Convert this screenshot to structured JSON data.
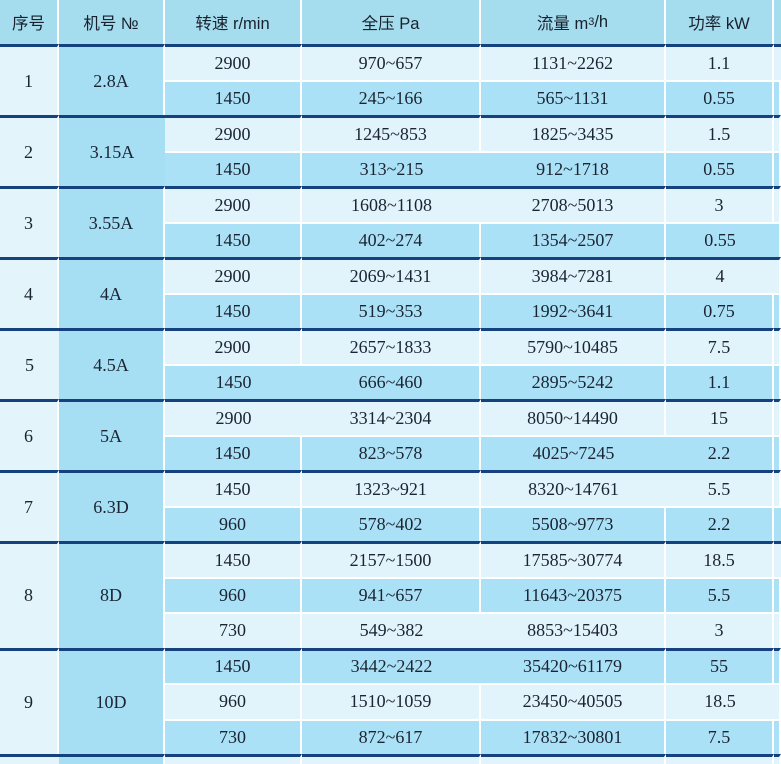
{
  "table": {
    "headers": [
      "序号",
      "机号 №",
      "转速 r/min",
      "全压 Pa",
      "流量 m³/h",
      "功率 kW",
      ""
    ],
    "groups": [
      {
        "index": "1",
        "model": "2.8A",
        "rows": [
          {
            "speed": "2900",
            "pressure": "970~657",
            "flow": "1131~2262",
            "power": "1.1"
          },
          {
            "speed": "1450",
            "pressure": "245~166",
            "flow": "565~1131",
            "power": "0.55"
          }
        ]
      },
      {
        "index": "2",
        "model": "3.15A",
        "rows": [
          {
            "speed": "2900",
            "pressure": "1245~853",
            "flow": "1825~3435",
            "power": "1.5"
          },
          {
            "speed": "1450",
            "pressure": "313~215",
            "flow": "912~1718",
            "power": "0.55"
          }
        ]
      },
      {
        "index": "3",
        "model": "3.55A",
        "rows": [
          {
            "speed": "2900",
            "pressure": "1608~1108",
            "flow": "2708~5013",
            "power": "3"
          },
          {
            "speed": "1450",
            "pressure": "402~274",
            "flow": "1354~2507",
            "power": "0.55"
          }
        ]
      },
      {
        "index": "4",
        "model": "4A",
        "rows": [
          {
            "speed": "2900",
            "pressure": "2069~1431",
            "flow": "3984~7281",
            "power": "4"
          },
          {
            "speed": "1450",
            "pressure": "519~353",
            "flow": "1992~3641",
            "power": "0.75"
          }
        ]
      },
      {
        "index": "5",
        "model": "4.5A",
        "rows": [
          {
            "speed": "2900",
            "pressure": "2657~1833",
            "flow": "5790~10485",
            "power": "7.5"
          },
          {
            "speed": "1450",
            "pressure": "666~460",
            "flow": "2895~5242",
            "power": "1.1"
          }
        ]
      },
      {
        "index": "6",
        "model": "5A",
        "rows": [
          {
            "speed": "2900",
            "pressure": "3314~2304",
            "flow": "8050~14490",
            "power": "15"
          },
          {
            "speed": "1450",
            "pressure": "823~578",
            "flow": "4025~7245",
            "power": "2.2"
          }
        ]
      },
      {
        "index": "7",
        "model": "6.3D",
        "rows": [
          {
            "speed": "1450",
            "pressure": "1323~921",
            "flow": "8320~14761",
            "power": "5.5"
          },
          {
            "speed": "960",
            "pressure": "578~402",
            "flow": "5508~9773",
            "power": "2.2"
          }
        ]
      },
      {
        "index": "8",
        "model": "8D",
        "rows": [
          {
            "speed": "1450",
            "pressure": "2157~1500",
            "flow": "17585~30774",
            "power": "18.5"
          },
          {
            "speed": "960",
            "pressure": "941~657",
            "flow": "11643~20375",
            "power": "5.5"
          },
          {
            "speed": "730",
            "pressure": "549~382",
            "flow": "8853~15403",
            "power": "3"
          }
        ]
      },
      {
        "index": "9",
        "model": "10D",
        "rows": [
          {
            "speed": "1450",
            "pressure": "3442~2422",
            "flow": "35420~61179",
            "power": "55"
          },
          {
            "speed": "960",
            "pressure": "1510~1059",
            "flow": "23450~40505",
            "power": "18.5"
          },
          {
            "speed": "730",
            "pressure": "872~617",
            "flow": "17832~30801",
            "power": "7.5"
          }
        ]
      }
    ]
  },
  "colors": {
    "header_bg": "#a5dcee",
    "row_light_bg": "#e1f3fb",
    "row_dark_bg": "#abe1f6",
    "serial_col_bg": "#e3f4fb",
    "model_col_bg": "#a6dff4",
    "group_divider": "#16417f",
    "cell_divider": "#ffffff",
    "text": "#1b2432"
  }
}
